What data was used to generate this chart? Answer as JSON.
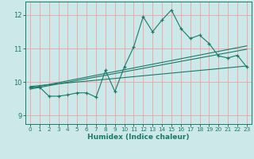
{
  "title": "",
  "xlabel": "Humidex (Indice chaleur)",
  "bg_color": "#cce8e8",
  "line_color": "#1a7a6a",
  "grid_color": "#f0a0a0",
  "xlim": [
    -0.5,
    23.5
  ],
  "ylim": [
    8.75,
    12.4
  ],
  "yticks": [
    9,
    10,
    11,
    12
  ],
  "xticks": [
    0,
    1,
    2,
    3,
    4,
    5,
    6,
    7,
    8,
    9,
    10,
    11,
    12,
    13,
    14,
    15,
    16,
    17,
    18,
    19,
    20,
    21,
    22,
    23
  ],
  "main_x": [
    0,
    1,
    2,
    3,
    4,
    5,
    6,
    7,
    8,
    9,
    10,
    11,
    12,
    13,
    14,
    15,
    16,
    17,
    18,
    19,
    20,
    21,
    22,
    23
  ],
  "main_y": [
    9.85,
    9.85,
    9.58,
    9.58,
    9.62,
    9.68,
    9.68,
    9.55,
    10.35,
    9.72,
    10.45,
    11.05,
    11.95,
    11.5,
    11.85,
    12.15,
    11.6,
    11.3,
    11.4,
    11.15,
    10.78,
    10.72,
    10.8,
    10.45
  ],
  "line1_x": [
    0,
    23
  ],
  "line1_y": [
    9.87,
    10.48
  ],
  "line2_x": [
    0,
    23
  ],
  "line2_y": [
    9.82,
    11.08
  ],
  "line3_x": [
    0,
    23
  ],
  "line3_y": [
    9.79,
    10.98
  ]
}
